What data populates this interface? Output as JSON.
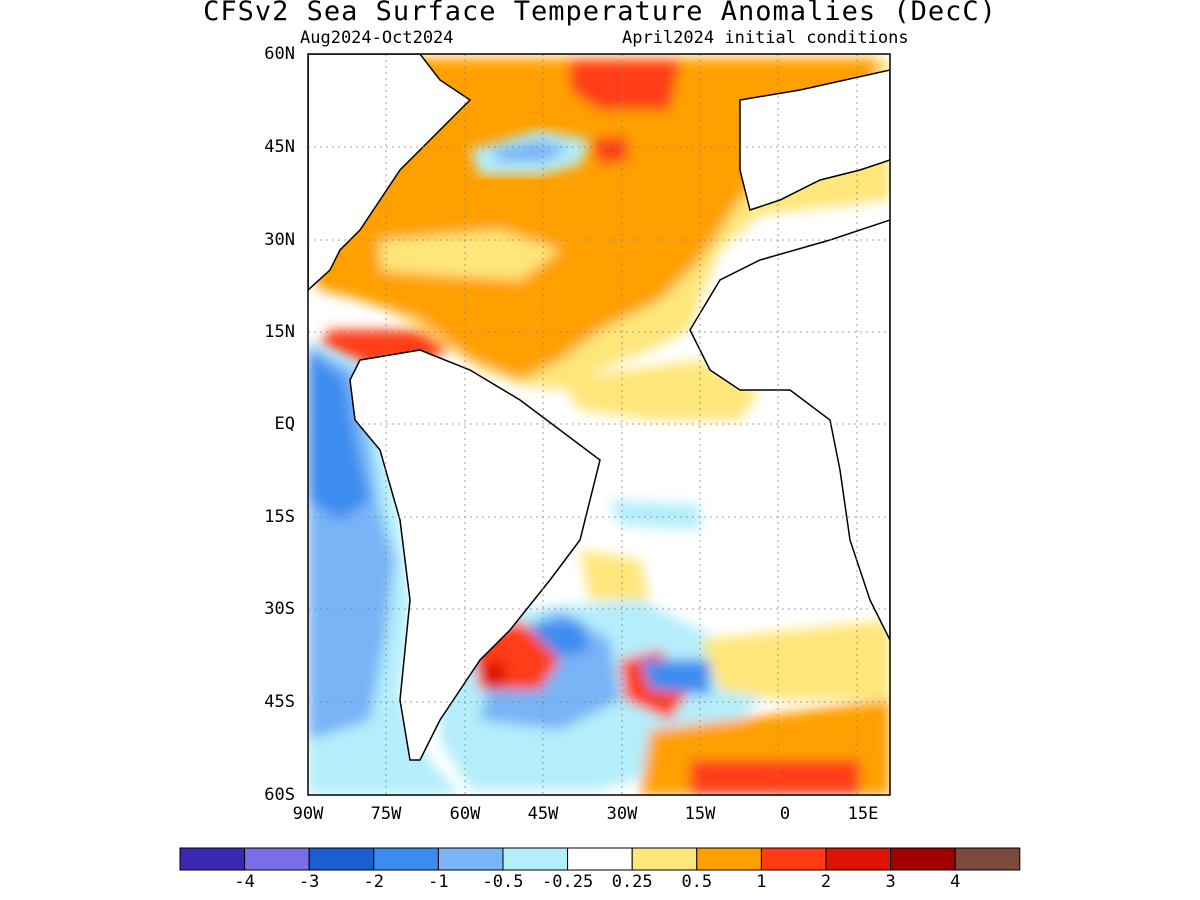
{
  "header": {
    "title": "CFSv2 Sea Surface Temperature Anomalies (DecC)",
    "period": "Aug2024-Oct2024",
    "init": "April2024 initial conditions"
  },
  "axes": {
    "lat_labels": [
      "60N",
      "45N",
      "30N",
      "15N",
      "EQ",
      "15S",
      "30S",
      "45S",
      "60S"
    ],
    "lon_labels": [
      "90W",
      "75W",
      "60W",
      "45W",
      "30W",
      "15W",
      "0",
      "15E"
    ]
  },
  "colorbar": {
    "colors": [
      "#3a28b4",
      "#7a6ee8",
      "#1a5ed0",
      "#3c8cf0",
      "#78b4f6",
      "#b4eefa",
      "#ffffff",
      "#ffe67a",
      "#ffa000",
      "#ff3c14",
      "#dc1404",
      "#a00000",
      "#7a4a3c"
    ],
    "labels": [
      "-4",
      "-3",
      "-2",
      "-1",
      "-0.5",
      "-0.25",
      "0.25",
      "0.5",
      "1",
      "2",
      "3",
      "4"
    ]
  }
}
